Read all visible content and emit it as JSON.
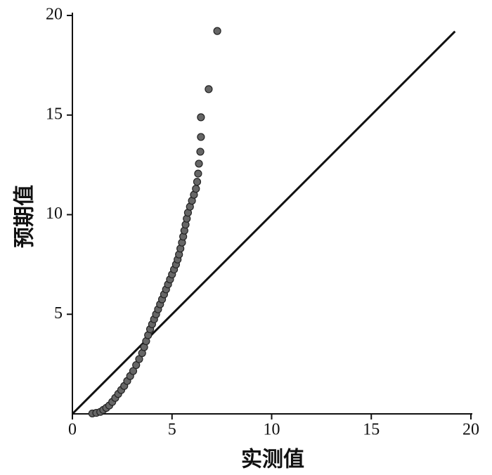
{
  "chart_data": {
    "type": "scatter",
    "xlabel": "实测值",
    "ylabel": "预期值",
    "xlim": [
      0,
      20
    ],
    "ylim": [
      0,
      20
    ],
    "xticks": [
      0,
      5,
      10,
      15,
      20
    ],
    "yticks": [
      5,
      10,
      15,
      20
    ],
    "color": "#666666",
    "x": [
      1.0,
      1.2,
      1.4,
      1.55,
      1.7,
      1.85,
      2.0,
      2.15,
      2.3,
      2.45,
      2.6,
      2.75,
      2.9,
      3.05,
      3.2,
      3.35,
      3.5,
      3.6,
      3.7,
      3.8,
      3.9,
      4.0,
      4.1,
      4.2,
      4.3,
      4.4,
      4.5,
      4.6,
      4.7,
      4.8,
      4.9,
      5.0,
      5.1,
      5.2,
      5.28,
      5.35,
      5.42,
      5.5,
      5.56,
      5.62,
      5.68,
      5.74,
      5.8,
      5.9,
      6.0,
      6.1,
      6.2,
      6.26,
      6.31,
      6.35,
      6.42,
      6.45,
      6.45,
      6.84,
      7.27
    ],
    "y": [
      0.02,
      0.05,
      0.1,
      0.2,
      0.3,
      0.42,
      0.6,
      0.8,
      1.0,
      1.2,
      1.4,
      1.65,
      1.9,
      2.15,
      2.45,
      2.75,
      3.05,
      3.35,
      3.65,
      3.95,
      4.25,
      4.5,
      4.75,
      5.0,
      5.25,
      5.5,
      5.75,
      6.0,
      6.25,
      6.5,
      6.75,
      7.0,
      7.25,
      7.5,
      7.75,
      8.0,
      8.3,
      8.6,
      8.9,
      9.2,
      9.5,
      9.8,
      10.1,
      10.4,
      10.7,
      11.0,
      11.3,
      11.65,
      12.06,
      12.56,
      13.16,
      13.9,
      14.89,
      16.3,
      19.22
    ],
    "reference_line": {
      "x": [
        0,
        19.2
      ],
      "y": [
        0,
        19.2
      ],
      "color": "#111111"
    }
  }
}
